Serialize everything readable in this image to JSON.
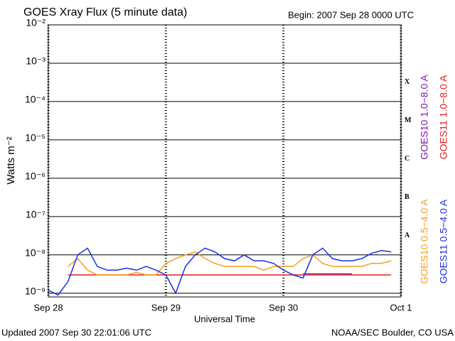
{
  "chart_data": {
    "type": "line",
    "title": "GOES Xray Flux (5 minute data)",
    "subtitle": "Begin:  2007 Sep 28 0000 UTC",
    "x_label": "Universal Time",
    "y_label": "Watts m⁻²",
    "footer_left": "Updated 2007 Sep 30 22:01:06 UTC",
    "footer_right": "NOAA/SEC Boulder, CO USA",
    "log_y": true,
    "grid": true,
    "xlim": [
      0,
      72
    ],
    "xticks": [
      {
        "value": 0,
        "label": "Sep 28"
      },
      {
        "value": 24,
        "label": "Sep 29"
      },
      {
        "value": 48,
        "label": "Sep 30"
      },
      {
        "value": 72,
        "label": "Oct 1"
      }
    ],
    "ylim": [
      8e-10,
      0.01
    ],
    "yticks": [
      {
        "value": 1e-09,
        "label": "10⁻⁹"
      },
      {
        "value": 1e-08,
        "label": "10⁻⁸"
      },
      {
        "value": 1e-07,
        "label": "10⁻⁷"
      },
      {
        "value": 1e-06,
        "label": "10⁻⁶"
      },
      {
        "value": 1e-05,
        "label": "10⁻⁵"
      },
      {
        "value": 0.0001,
        "label": "10⁻⁴"
      },
      {
        "value": 0.001,
        "label": "10⁻³"
      },
      {
        "value": 0.01,
        "label": "10⁻²"
      }
    ],
    "flare_classes": [
      "A",
      "B",
      "C",
      "M",
      "X"
    ],
    "x": [
      0,
      2,
      4,
      6,
      8,
      10,
      12,
      14,
      16,
      18,
      20,
      22,
      24,
      26,
      28,
      30,
      32,
      34,
      36,
      38,
      40,
      42,
      44,
      46,
      48,
      50,
      52,
      54,
      56,
      58,
      60,
      62,
      64,
      66,
      68,
      70,
      72
    ],
    "series": [
      {
        "name": "GOES10 1.0−8.0 A",
        "color": "#7a1fa2",
        "values": [
          null,
          null,
          null,
          null,
          null,
          null,
          null,
          null,
          null,
          null,
          null,
          null,
          null,
          null,
          null,
          null,
          null,
          null,
          null,
          null,
          null,
          null,
          null,
          null,
          null,
          null,
          3.2e-09,
          3.2e-09,
          3.2e-09,
          3.2e-09,
          3.2e-09,
          3.2e-09,
          null,
          null,
          null,
          null,
          null
        ]
      },
      {
        "name": "GOES11 1.0−8.0 A",
        "color": "#e0201b",
        "values": [
          null,
          null,
          3e-09,
          3e-09,
          3e-09,
          3e-09,
          3e-09,
          3e-09,
          3e-09,
          3e-09,
          3e-09,
          3e-09,
          3e-09,
          3e-09,
          3e-09,
          3e-09,
          3e-09,
          3e-09,
          3e-09,
          3e-09,
          3e-09,
          3e-09,
          3e-09,
          3e-09,
          3e-09,
          3e-09,
          3e-09,
          3e-09,
          3e-09,
          3e-09,
          3e-09,
          3e-09,
          3e-09,
          3e-09,
          3e-09,
          3e-09,
          null
        ]
      },
      {
        "name": "GOES10 0.5−4.0 A",
        "color": "#f5a01a",
        "values": [
          null,
          null,
          5e-09,
          8e-09,
          4e-09,
          3e-09,
          3e-09,
          3e-09,
          3e-09,
          3.5e-09,
          3e-09,
          3e-09,
          6e-09,
          8e-09,
          1e-08,
          1.2e-08,
          8e-09,
          6e-09,
          5e-09,
          5e-09,
          5e-09,
          5e-09,
          4e-09,
          5e-09,
          5e-09,
          5e-09,
          8e-09,
          1e-08,
          6e-09,
          5e-09,
          5e-09,
          5e-09,
          5e-09,
          6e-09,
          6e-09,
          7e-09,
          null
        ]
      },
      {
        "name": "GOES11 0.5−4.0 A",
        "color": "#1a2fe0",
        "values": [
          1.2e-09,
          9e-10,
          2e-09,
          1e-08,
          1.5e-08,
          5e-09,
          4e-09,
          4e-09,
          4.5e-09,
          4e-09,
          5e-09,
          4e-09,
          3e-09,
          1e-09,
          5e-09,
          1e-08,
          1.5e-08,
          1.2e-08,
          8e-09,
          7e-09,
          1e-08,
          7e-09,
          7e-09,
          6e-09,
          4e-09,
          3e-09,
          2.5e-09,
          1e-08,
          1.5e-08,
          8e-09,
          7e-09,
          7e-09,
          8e-09,
          1.1e-08,
          1.3e-08,
          1.2e-08,
          null
        ]
      }
    ]
  }
}
